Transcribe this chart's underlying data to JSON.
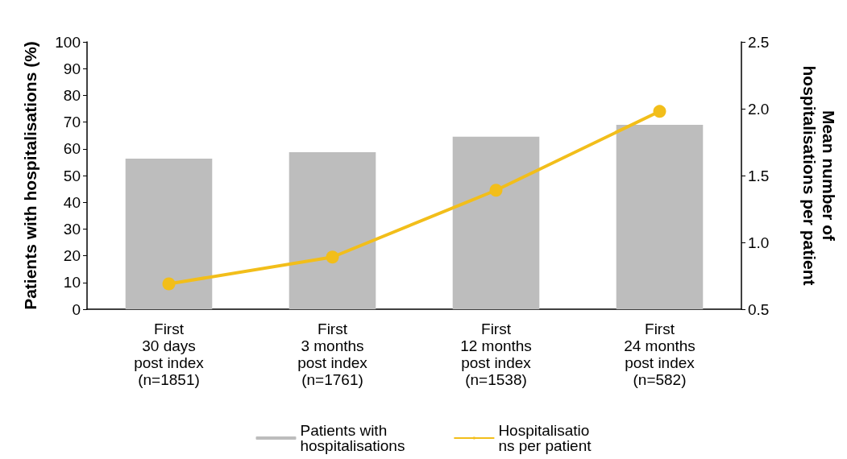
{
  "chart_data": {
    "type": "bar",
    "categories": [
      "First\n30 days\npost index\n(n=1851)",
      "First\n3 months\npost index\n(n=1761)",
      "First\n12 months\npost index\n(n=1538)",
      "First\n24 months\npost index\n(n=582)"
    ],
    "series": [
      {
        "name": "Patients with\nhospitalisations",
        "color": "#bdbdbd",
        "values": [
          56.3,
          58.7,
          64.5,
          69
        ]
      },
      {
        "name": "Hospitalisatio\nns per patient",
        "type": "line",
        "axis": "y2",
        "color": "#f2be1a",
        "values": [
          0.69,
          0.89,
          1.39,
          1.98
        ]
      }
    ],
    "ylabel": "Patients with hospitalisations (%)",
    "y2label": "Mean number of\nhospitalisations per patient",
    "ylim": [
      0,
      100
    ],
    "yticks": [
      0,
      10,
      20,
      30,
      40,
      50,
      60,
      70,
      80,
      90,
      100
    ],
    "y2lim": [
      0.5,
      2.5
    ],
    "y2ticks": [
      0.5,
      {
        "value": 1,
        "label": "1.0"
      },
      1.5,
      {
        "value": 2,
        "label": "2.0"
      },
      2.5
    ],
    "grid": false,
    "legend": "bottom",
    "marker": "circle",
    "line_style": "solid"
  }
}
